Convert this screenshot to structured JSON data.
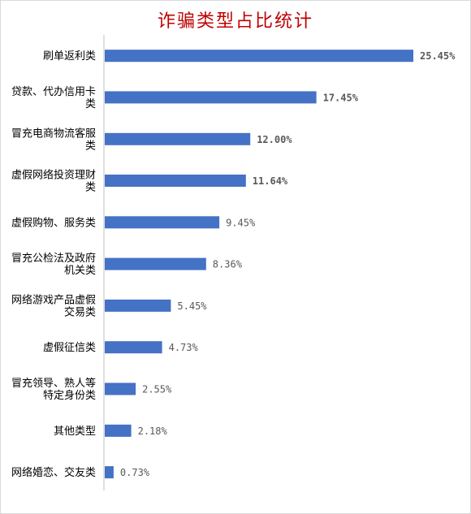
{
  "chart_data": {
    "type": "bar",
    "orientation": "horizontal",
    "title": "诈骗类型占比统计",
    "categories": [
      [
        "刷单返利类"
      ],
      [
        "贷款、代办信用卡",
        "类"
      ],
      [
        "冒充电商物流客服",
        "类"
      ],
      [
        "虚假网络投资理财",
        "类"
      ],
      [
        "虚假购物、服务类"
      ],
      [
        "冒充公检法及政府",
        "机关类"
      ],
      [
        "网络游戏产品虚假",
        "交易类"
      ],
      [
        "虚假征信类"
      ],
      [
        "冒充领导、熟人等",
        "特定身份类"
      ],
      [
        "其他类型"
      ],
      [
        "网络婚恋、交友类"
      ]
    ],
    "values": [
      25.45,
      17.45,
      12.0,
      11.64,
      9.45,
      8.36,
      5.45,
      4.73,
      2.55,
      2.18,
      0.73
    ],
    "labels": [
      "25.45%",
      "17.45%",
      "12.00%",
      "11.64%",
      "9.45%",
      "8.36%",
      "5.45%",
      "4.73%",
      "2.55%",
      "2.18%",
      "0.73%"
    ],
    "label_colors": [
      "#c00000",
      "#ed7d31",
      "#ed7d31",
      "#ed7d31",
      "#595959",
      "#595959",
      "#595959",
      "#595959",
      "#595959",
      "#595959",
      "#595959"
    ],
    "label_bold": [
      true,
      true,
      true,
      true,
      false,
      false,
      false,
      false,
      false,
      false,
      false
    ],
    "bar_color": "#4472c4",
    "title_color": "#c00000",
    "xlim": [
      0,
      25.45
    ],
    "grid": false
  }
}
